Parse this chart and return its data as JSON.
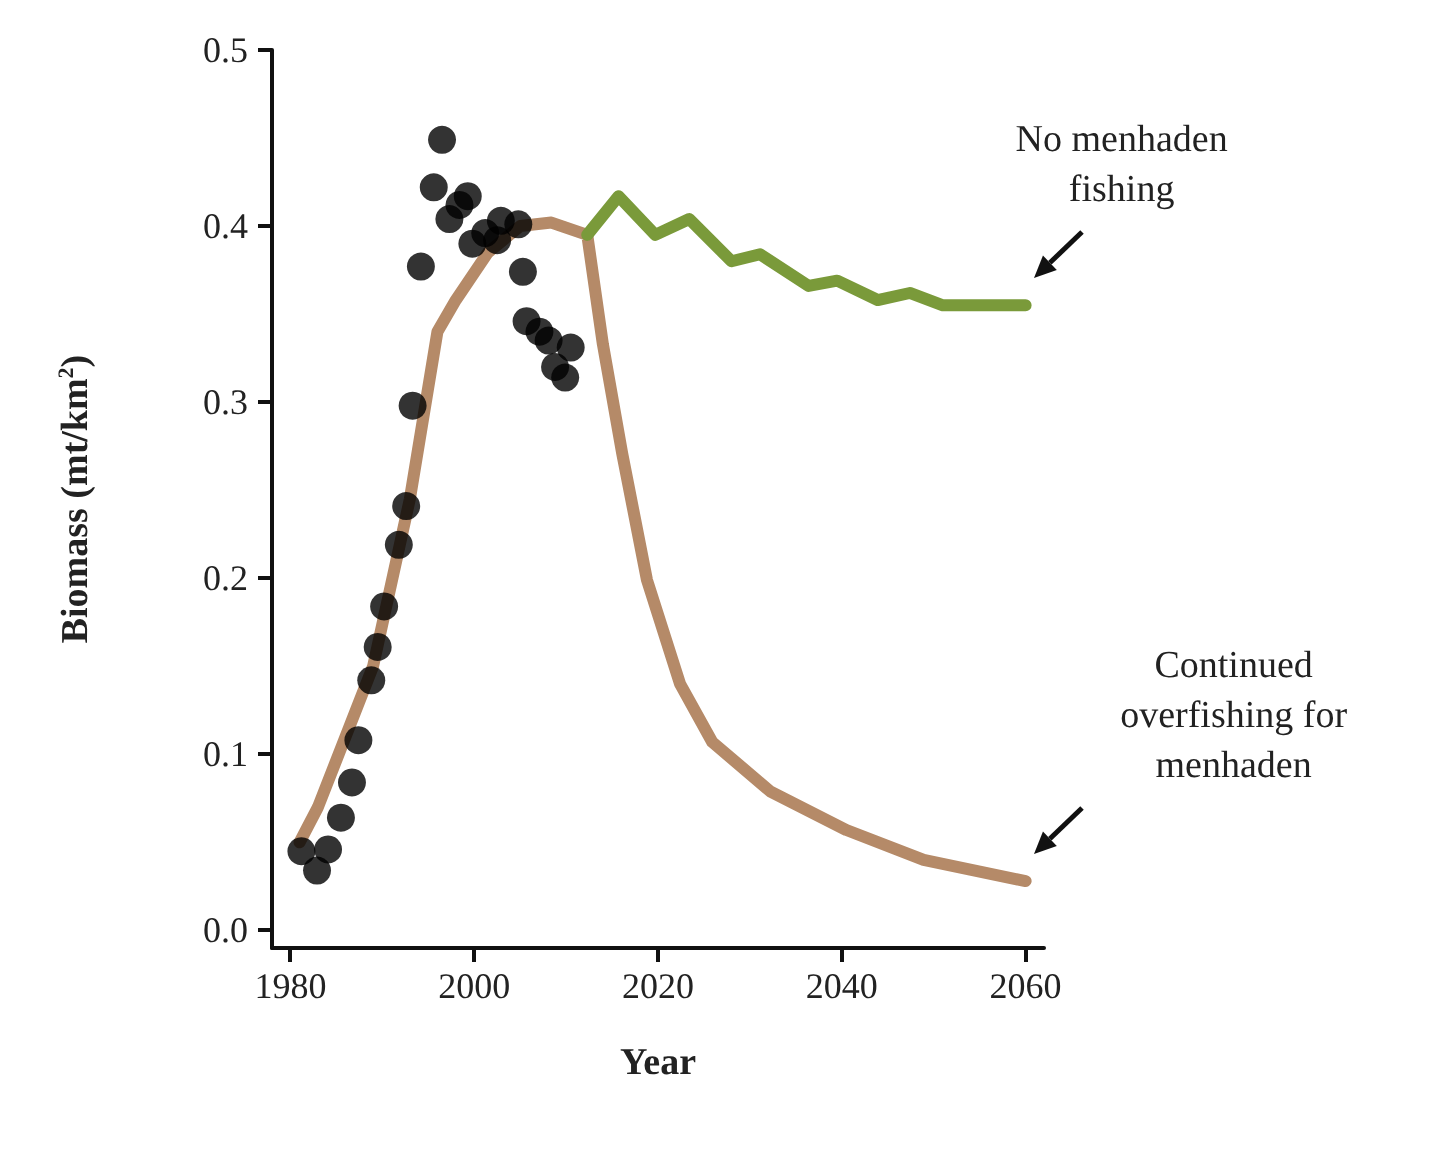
{
  "chart_data": {
    "type": "line",
    "xlabel": "Year",
    "ylabel": "Biomass (mt/km$^{2}$)",
    "xlim": [
      1978,
      2062
    ],
    "xticks": [
      1980,
      2000,
      2020,
      2040,
      2060
    ],
    "ylim": [
      -0.01,
      0.5
    ],
    "yticks": [
      {
        "value": 0,
        "label": "0.0"
      },
      0.1,
      0.2,
      0.3,
      0.4,
      0.5
    ],
    "grid": false,
    "legend": false,
    "line_style": "solid",
    "series": [
      {
        "name": "Continued overfishing for menhaden",
        "marker": "none",
        "color": "#b58a68",
        "x": [
          1981,
          1983,
          1986,
          1989,
          1993,
          1996,
          1998,
          2001.5,
          2005,
          2008.4,
          2012.3,
          2014,
          2016.1,
          2018.8,
          2022.4,
          2025.9,
          2032.2,
          2040.5,
          2048.9,
          2060
        ],
        "values": [
          0.05,
          0.07,
          0.11,
          0.15,
          0.245,
          0.34,
          0.358,
          0.385,
          0.4,
          0.402,
          0.395,
          0.333,
          0.271,
          0.199,
          0.14,
          0.107,
          0.079,
          0.057,
          0.04,
          0.028
        ]
      },
      {
        "name": "No menhaden fishing",
        "marker": "none",
        "color": "#7a9a3a",
        "x": [
          2012.3,
          2015.7,
          2019.7,
          2023.4,
          2028,
          2031.1,
          2036.4,
          2039.5,
          2043.9,
          2047.4,
          2051,
          2060
        ],
        "values": [
          0.395,
          0.417,
          0.395,
          0.404,
          0.38,
          0.384,
          0.366,
          0.369,
          0.358,
          0.362,
          0.355,
          0.355
        ]
      },
      {
        "type": "scatter",
        "marker": "circle",
        "color": "#000000",
        "x": [
          1981.2,
          1982.9,
          1984.1,
          1985.5,
          1986.7,
          1987.4,
          1988.8,
          1989.5,
          1990.2,
          1991.8,
          1992.6,
          1993.3,
          1994.2,
          1995.6,
          1996.5,
          1997.3,
          1998.4,
          1999.3,
          1999.8,
          2001.2,
          2002.5,
          2002.9,
          2004.8,
          2005.3,
          2005.7,
          2007.1,
          2008.1,
          2008.8,
          2009.9,
          2010.5
        ],
        "values": [
          0.045,
          0.034,
          0.046,
          0.064,
          0.084,
          0.108,
          0.142,
          0.161,
          0.184,
          0.219,
          0.241,
          0.298,
          0.377,
          0.422,
          0.449,
          0.404,
          0.412,
          0.417,
          0.39,
          0.396,
          0.392,
          0.403,
          0.401,
          0.374,
          0.346,
          0.34,
          0.335,
          0.32,
          0.314,
          0.331
        ]
      }
    ]
  }
}
